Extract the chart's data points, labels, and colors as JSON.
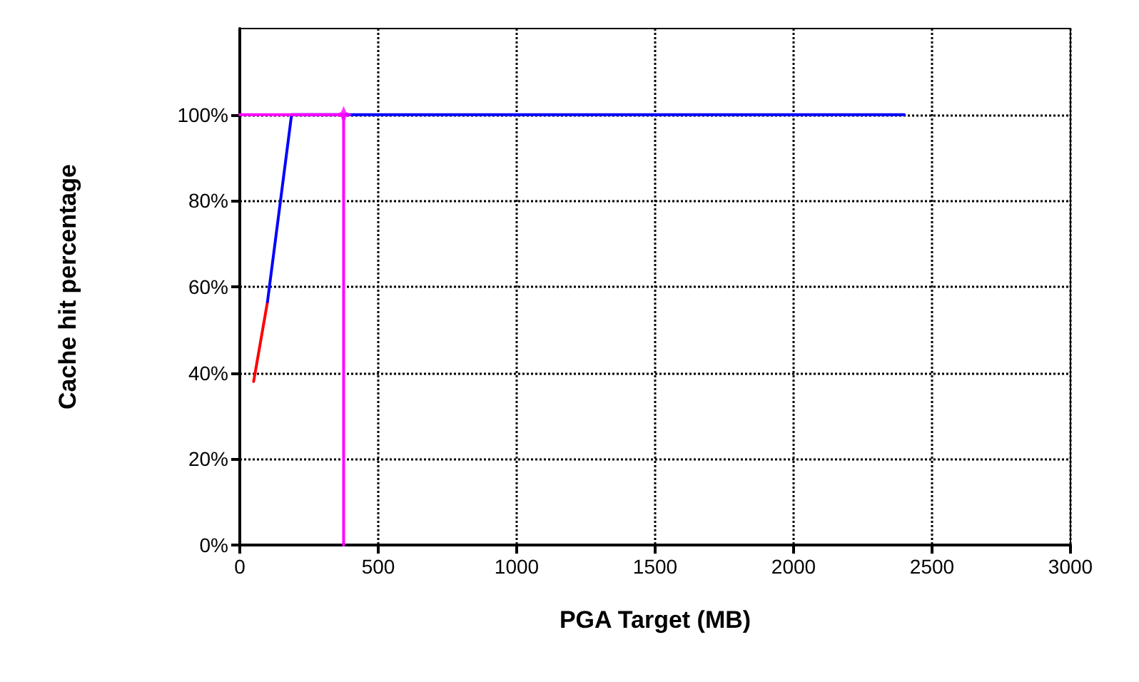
{
  "chart_data": {
    "type": "line",
    "xlabel": "PGA Target (MB)",
    "ylabel": "Cache hit percentage",
    "xlim": [
      0,
      3000
    ],
    "xticks": [
      0,
      500,
      1000,
      1500,
      2000,
      2500,
      3000
    ],
    "ylim": [
      0,
      120
    ],
    "yticks": [
      {
        "value": 0,
        "label": "0%"
      },
      {
        "value": 20,
        "label": "20%"
      },
      {
        "value": 40,
        "label": "40%"
      },
      {
        "value": 60,
        "label": "60%"
      },
      {
        "value": 80,
        "label": "80%"
      },
      {
        "value": 100,
        "label": "100%"
      }
    ],
    "grid": true,
    "line_style": "solid",
    "series": [
      {
        "color": "#ff0000",
        "x": [
          50,
          100
        ],
        "values": [
          38,
          56.5
        ],
        "marker": "none"
      },
      {
        "color": "#0000ff",
        "x": [
          100,
          187,
          2400
        ],
        "values": [
          56.5,
          100,
          100
        ],
        "marker": "none"
      },
      {
        "color": "#ff00ff",
        "x": [
          0,
          375,
          375
        ],
        "values": [
          100,
          100,
          0
        ],
        "marker": "none"
      },
      {
        "type": "scatter",
        "color": "#ff00ff",
        "x": [
          375
        ],
        "values": [
          100
        ],
        "marker": "star"
      }
    ]
  }
}
